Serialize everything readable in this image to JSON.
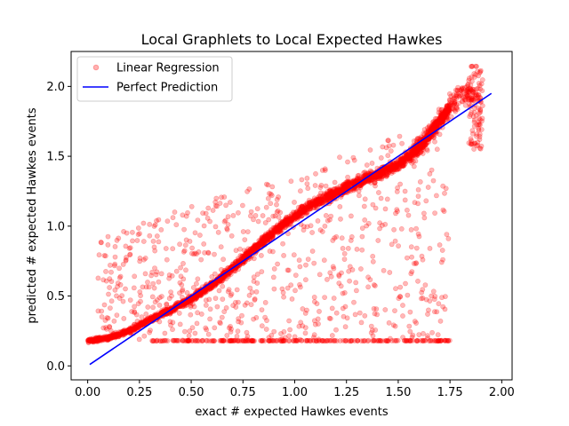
{
  "chart_data": {
    "type": "scatter",
    "title": "Local Graphlets to Local Expected Hawkes",
    "xlabel": "exact # expected Hawkes events",
    "ylabel": "predicted # expected Hawkes events",
    "xlim": [
      -0.08,
      2.05
    ],
    "ylim": [
      -0.1,
      2.25
    ],
    "xticks": [
      "0.00",
      "0.25",
      "0.50",
      "0.75",
      "1.00",
      "1.25",
      "1.50",
      "1.75",
      "2.00"
    ],
    "yticks": [
      "0.0",
      "0.5",
      "1.0",
      "1.5",
      "2.0"
    ],
    "grid": false,
    "legend_position": "top-left",
    "legend": {
      "scatter_label": "Linear Regression",
      "line_label": "Perfect Prediction"
    },
    "colors": {
      "scatter": "#ff0000",
      "line": "#0000ff"
    },
    "main_trend": {
      "x": [
        0.0,
        0.1,
        0.2,
        0.3,
        0.4,
        0.5,
        0.6,
        0.7,
        0.8,
        0.9,
        1.0,
        1.1,
        1.2,
        1.3,
        1.4,
        1.5,
        1.6,
        1.7,
        1.8
      ],
      "y": [
        0.18,
        0.2,
        0.25,
        0.33,
        0.4,
        0.48,
        0.58,
        0.7,
        0.83,
        0.96,
        1.07,
        1.17,
        1.24,
        1.31,
        1.37,
        1.44,
        1.56,
        1.75,
        1.95
      ]
    },
    "floor_band": {
      "y": 0.18,
      "x_range": [
        0.3,
        1.75
      ]
    },
    "perfect_line": {
      "x": [
        0.01,
        1.95
      ],
      "y": [
        0.01,
        1.95
      ]
    }
  }
}
